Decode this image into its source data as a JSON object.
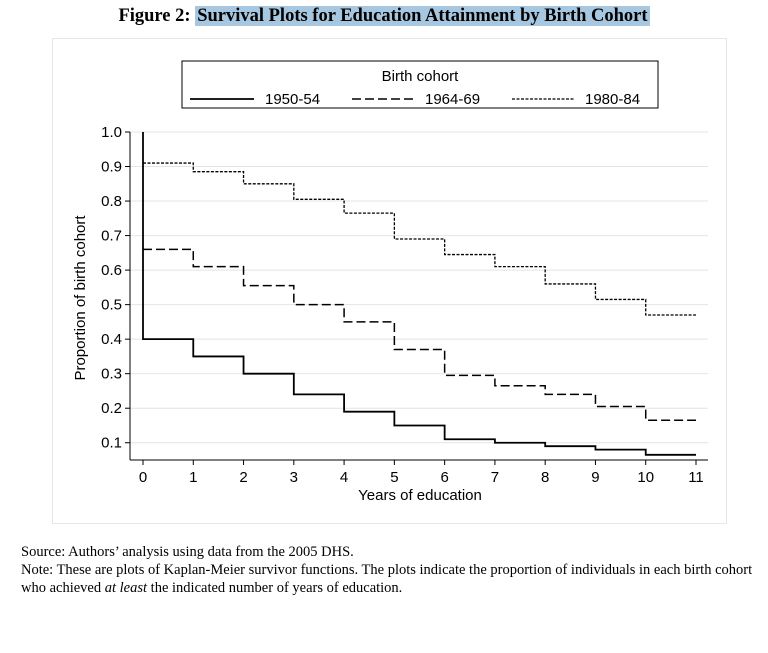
{
  "figure": {
    "label": "Figure 2:",
    "title": "Survival Plots for Education Attainment by Birth Cohort"
  },
  "source_note": "Source: Authors’ analysis using data from the 2005 DHS.",
  "note": {
    "prefix": "Note: These are plots of Kaplan-Meier survivor functions. The plots indicate the proportion of individuals in each birth cohort who achieved ",
    "emphasis": "at least",
    "suffix": " the indicated number of years of education."
  },
  "chart_data": {
    "type": "line",
    "step": true,
    "xlabel": "Years of education",
    "ylabel": "Proportion of birth cohort",
    "xlim": [
      0,
      11
    ],
    "ylim": [
      0.05,
      1.0
    ],
    "x_ticks": [
      0,
      1,
      2,
      3,
      4,
      5,
      6,
      7,
      8,
      9,
      10,
      11
    ],
    "y_ticks": [
      0.1,
      0.2,
      0.3,
      0.4,
      0.5,
      0.6,
      0.7,
      0.8,
      0.9,
      1.0
    ],
    "y_tick_labels": [
      "0.1",
      "0.2",
      "0.3",
      "0.4",
      "0.5",
      "0.6",
      "0.7",
      "0.8",
      "0.9",
      "1.0"
    ],
    "grid": true,
    "legend": {
      "title": "Birth cohort",
      "position": "top"
    },
    "series": [
      {
        "name": "1950-54",
        "style": "solid",
        "start": 1.0,
        "x": [
          0,
          1,
          2,
          3,
          4,
          5,
          6,
          7,
          8,
          9,
          10,
          11
        ],
        "values": [
          0.4,
          0.35,
          0.3,
          0.24,
          0.19,
          0.15,
          0.11,
          0.1,
          0.09,
          0.08,
          0.065,
          0.065
        ]
      },
      {
        "name": "1964-69",
        "style": "dashed",
        "start": null,
        "x": [
          0,
          1,
          2,
          3,
          4,
          5,
          6,
          7,
          8,
          9,
          10,
          11
        ],
        "values": [
          0.66,
          0.61,
          0.555,
          0.5,
          0.45,
          0.37,
          0.295,
          0.265,
          0.24,
          0.205,
          0.165,
          0.165
        ]
      },
      {
        "name": "1980-84",
        "style": "dotted",
        "start": null,
        "x": [
          0,
          1,
          2,
          3,
          4,
          5,
          6,
          7,
          8,
          9,
          10,
          11
        ],
        "values": [
          0.91,
          0.885,
          0.85,
          0.805,
          0.765,
          0.69,
          0.645,
          0.61,
          0.56,
          0.515,
          0.47,
          0.47
        ]
      }
    ]
  }
}
